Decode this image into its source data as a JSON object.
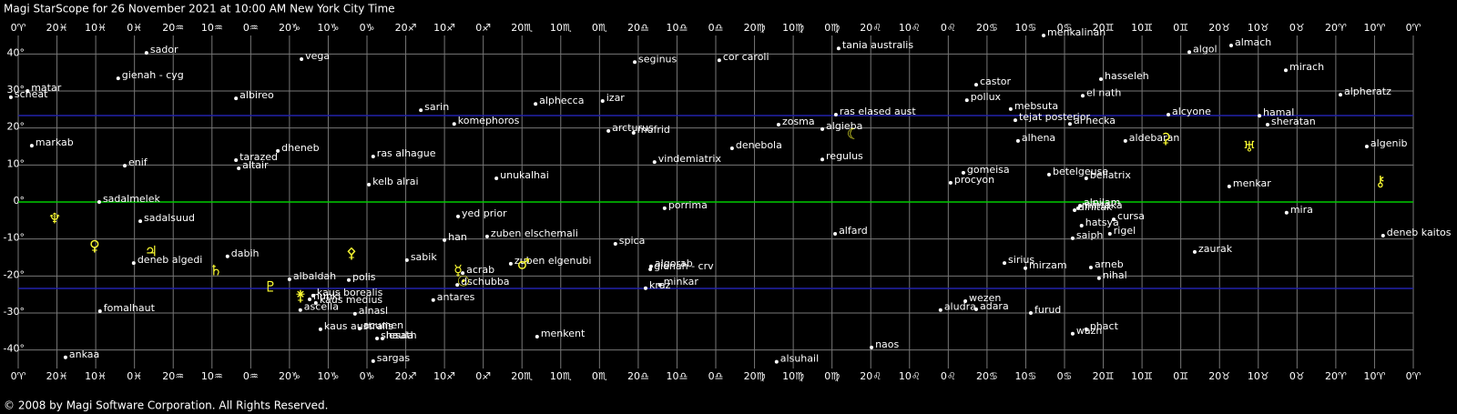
{
  "header": {
    "title": "Magi StarScope for 26 November 2021 at 10:00 AM New York City Time"
  },
  "footer": {
    "text": "© 2008 by Magi Software Corporation. All Rights Reserved."
  },
  "axis": {
    "xlim": [
      360,
      0
    ],
    "ylim": [
      -45,
      45
    ],
    "xticks": [
      {
        "value": 360,
        "label": "0♈"
      },
      {
        "value": 350,
        "label": "20♓"
      },
      {
        "value": 340,
        "label": "10♓"
      },
      {
        "value": 330,
        "label": "0♓"
      },
      {
        "value": 320,
        "label": "20♒"
      },
      {
        "value": 310,
        "label": "10♒"
      },
      {
        "value": 300,
        "label": "0♒"
      },
      {
        "value": 290,
        "label": "20♑"
      },
      {
        "value": 280,
        "label": "10♑"
      },
      {
        "value": 270,
        "label": "0♑"
      },
      {
        "value": 260,
        "label": "20♐"
      },
      {
        "value": 250,
        "label": "10♐"
      },
      {
        "value": 240,
        "label": "0♐"
      },
      {
        "value": 230,
        "label": "20♏"
      },
      {
        "value": 220,
        "label": "10♏"
      },
      {
        "value": 210,
        "label": "0♏"
      },
      {
        "value": 200,
        "label": "20♎"
      },
      {
        "value": 190,
        "label": "10♎"
      },
      {
        "value": 180,
        "label": "0♎"
      },
      {
        "value": 170,
        "label": "20♍"
      },
      {
        "value": 160,
        "label": "10♍"
      },
      {
        "value": 150,
        "label": "0♍"
      },
      {
        "value": 140,
        "label": "20♌"
      },
      {
        "value": 130,
        "label": "10♌"
      },
      {
        "value": 120,
        "label": "0♌"
      },
      {
        "value": 110,
        "label": "20♋"
      },
      {
        "value": 100,
        "label": "10♋"
      },
      {
        "value": 90,
        "label": "0♋"
      },
      {
        "value": 80,
        "label": "20♊"
      },
      {
        "value": 70,
        "label": "10♊"
      },
      {
        "value": 60,
        "label": "0♊"
      },
      {
        "value": 50,
        "label": "20♉"
      },
      {
        "value": 40,
        "label": "10♉"
      },
      {
        "value": 30,
        "label": "0♉"
      },
      {
        "value": 20,
        "label": "20♈"
      },
      {
        "value": 10,
        "label": "10♈"
      },
      {
        "value": 0,
        "label": "0♈"
      }
    ],
    "yticks": [
      {
        "value": 40,
        "label": "40°"
      },
      {
        "value": 30,
        "label": "30°"
      },
      {
        "value": 20,
        "label": "20°"
      },
      {
        "value": 10,
        "label": "10°"
      },
      {
        "value": 0,
        "label": "0°"
      },
      {
        "value": -10,
        "label": "-10°"
      },
      {
        "value": -20,
        "label": "-20°"
      },
      {
        "value": -30,
        "label": "-30°"
      },
      {
        "value": -40,
        "label": "-40°"
      }
    ]
  },
  "stars": [
    {
      "name": "sador",
      "lon": 326.9,
      "dec": 40.3
    },
    {
      "name": "vega",
      "lon": 286.9,
      "dec": 38.6
    },
    {
      "name": "gienah - cyg",
      "lon": 334.2,
      "dec": 33.4
    },
    {
      "name": "matar",
      "lon": 357.6,
      "dec": 30.0
    },
    {
      "name": "scheat",
      "lon": 361.9,
      "dec": 28.3
    },
    {
      "name": "albireo",
      "lon": 303.8,
      "dec": 28.0
    },
    {
      "name": "sarin",
      "lon": 256.1,
      "dec": 24.8
    },
    {
      "name": "alphecca",
      "lon": 226.5,
      "dec": 26.5
    },
    {
      "name": "izar",
      "lon": 209.2,
      "dec": 27.3
    },
    {
      "name": "seginus",
      "lon": 200.9,
      "dec": 37.8
    },
    {
      "name": "cor caroli",
      "lon": 179.1,
      "dec": 38.3
    },
    {
      "name": "tania australis",
      "lon": 148.3,
      "dec": 41.5
    },
    {
      "name": "menkalinan",
      "lon": 95.4,
      "dec": 45.0
    },
    {
      "name": "castor",
      "lon": 112.8,
      "dec": 31.7
    },
    {
      "name": "pollux",
      "lon": 115.2,
      "dec": 27.5
    },
    {
      "name": "mebsuta",
      "lon": 103.9,
      "dec": 25.1
    },
    {
      "name": "tejat posterior",
      "lon": 102.7,
      "dec": 22.1
    },
    {
      "name": "el nath",
      "lon": 85.3,
      "dec": 28.7
    },
    {
      "name": "hasseleh",
      "lon": 80.6,
      "dec": 33.2
    },
    {
      "name": "al hecka",
      "lon": 88.6,
      "dec": 21.1
    },
    {
      "name": "algol",
      "lon": 57.8,
      "dec": 40.5
    },
    {
      "name": "almach",
      "lon": 47.0,
      "dec": 42.3
    },
    {
      "name": "mirach",
      "lon": 32.9,
      "dec": 35.6
    },
    {
      "name": "alpheratz",
      "lon": 18.8,
      "dec": 29.0
    },
    {
      "name": "alcyone",
      "lon": 63.2,
      "dec": 23.6
    },
    {
      "name": "hamal",
      "lon": 39.7,
      "dec": 23.3
    },
    {
      "name": "sheratan",
      "lon": 37.6,
      "dec": 20.9
    },
    {
      "name": "aldebaran",
      "lon": 74.3,
      "dec": 16.5
    },
    {
      "name": "alhena",
      "lon": 102.0,
      "dec": 16.5
    },
    {
      "name": "algenib",
      "lon": 12.0,
      "dec": 15.0
    },
    {
      "name": "komephoros",
      "lon": 247.5,
      "dec": 21.1
    },
    {
      "name": "arcturus",
      "lon": 207.7,
      "dec": 19.2
    },
    {
      "name": "mufrid",
      "lon": 201.2,
      "dec": 18.7
    },
    {
      "name": "zosma",
      "lon": 163.8,
      "dec": 20.9
    },
    {
      "name": "ras elased aust",
      "lon": 149.0,
      "dec": 23.6
    },
    {
      "name": "algieba",
      "lon": 152.5,
      "dec": 19.7
    },
    {
      "name": "denebola",
      "lon": 175.8,
      "dec": 14.5
    },
    {
      "name": "regulus",
      "lon": 152.5,
      "dec": 11.5
    },
    {
      "name": "vindemiatrix",
      "lon": 195.8,
      "dec": 10.8
    },
    {
      "name": "markab",
      "lon": 356.5,
      "dec": 15.2
    },
    {
      "name": "enif",
      "lon": 332.5,
      "dec": 9.8
    },
    {
      "name": "dheneb",
      "lon": 293.0,
      "dec": 13.8
    },
    {
      "name": "tarazed",
      "lon": 303.8,
      "dec": 11.3
    },
    {
      "name": "altair",
      "lon": 303.1,
      "dec": 9.1
    },
    {
      "name": "ras alhague",
      "lon": 268.4,
      "dec": 12.3
    },
    {
      "name": "kelb alrai",
      "lon": 269.5,
      "dec": 4.7
    },
    {
      "name": "unukalhai",
      "lon": 236.6,
      "dec": 6.4
    },
    {
      "name": "gomeisa",
      "lon": 116.1,
      "dec": 7.9
    },
    {
      "name": "procyon",
      "lon": 119.4,
      "dec": 5.2
    },
    {
      "name": "betelgeuse",
      "lon": 94.0,
      "dec": 7.4
    },
    {
      "name": "bellatrix",
      "lon": 84.4,
      "dec": 6.4
    },
    {
      "name": "menkar",
      "lon": 47.5,
      "dec": 4.2
    },
    {
      "name": "mintaka",
      "lon": 86.5,
      "dec": -1.7
    },
    {
      "name": "alnitak",
      "lon": 87.4,
      "dec": -2.2
    },
    {
      "name": "alnilam",
      "lon": 86.0,
      "dec": -1.0
    },
    {
      "name": "porrima",
      "lon": 193.2,
      "dec": -1.7
    },
    {
      "name": "sadalmelek",
      "lon": 339.1,
      "dec": 0.0
    },
    {
      "name": "sadalsuud",
      "lon": 328.5,
      "dec": -5.2
    },
    {
      "name": "yed prior",
      "lon": 246.5,
      "dec": -3.9
    },
    {
      "name": "cursa",
      "lon": 77.3,
      "dec": -4.7
    },
    {
      "name": "hatsya",
      "lon": 85.6,
      "dec": -6.4
    },
    {
      "name": "mira",
      "lon": 32.7,
      "dec": -2.9
    },
    {
      "name": "alfard",
      "lon": 149.2,
      "dec": -8.6
    },
    {
      "name": "zuben elschemali",
      "lon": 239.0,
      "dec": -9.3
    },
    {
      "name": "han",
      "lon": 250.0,
      "dec": -10.3
    },
    {
      "name": "saiph",
      "lon": 87.9,
      "dec": -9.8
    },
    {
      "name": "rigel",
      "lon": 78.3,
      "dec": -8.6
    },
    {
      "name": "deneb kaitos",
      "lon": 7.8,
      "dec": -9.1
    },
    {
      "name": "spica",
      "lon": 205.9,
      "dec": -11.3
    },
    {
      "name": "zaurak",
      "lon": 56.4,
      "dec": -13.5
    },
    {
      "name": "dabih",
      "lon": 306.0,
      "dec": -14.7
    },
    {
      "name": "deneb algedi",
      "lon": 330.2,
      "dec": -16.5
    },
    {
      "name": "sabik",
      "lon": 259.7,
      "dec": -15.7
    },
    {
      "name": "algorab",
      "lon": 196.7,
      "dec": -17.4
    },
    {
      "name": "gienah - crv",
      "lon": 196.9,
      "dec": -18.2
    },
    {
      "name": "zuben elgenubi",
      "lon": 232.9,
      "dec": -16.7
    },
    {
      "name": "sirius",
      "lon": 105.5,
      "dec": -16.5
    },
    {
      "name": "mirzam",
      "lon": 100.1,
      "dec": -17.9
    },
    {
      "name": "arneb",
      "lon": 83.2,
      "dec": -17.7
    },
    {
      "name": "nihal",
      "lon": 81.1,
      "dec": -20.6
    },
    {
      "name": "acrab",
      "lon": 245.3,
      "dec": -19.2
    },
    {
      "name": "albaldah",
      "lon": 290.0,
      "dec": -20.9
    },
    {
      "name": "polis",
      "lon": 274.7,
      "dec": -21.1
    },
    {
      "name": "dschubba",
      "lon": 246.7,
      "dec": -22.4
    },
    {
      "name": "kraz",
      "lon": 198.1,
      "dec": -23.3
    },
    {
      "name": "minkar",
      "lon": 194.4,
      "dec": -22.4
    },
    {
      "name": "kaus borealis",
      "lon": 283.9,
      "dec": -25.3
    },
    {
      "name": "nunki",
      "lon": 284.8,
      "dec": -26.3
    },
    {
      "name": "ascella",
      "lon": 287.2,
      "dec": -29.2
    },
    {
      "name": "kaus medius",
      "lon": 283.2,
      "dec": -27.3
    },
    {
      "name": "antares",
      "lon": 252.9,
      "dec": -26.5
    },
    {
      "name": "alnasl",
      "lon": 273.1,
      "dec": -30.2
    },
    {
      "name": "fomalhaut",
      "lon": 338.9,
      "dec": -29.5
    },
    {
      "name": "aludra",
      "lon": 122.0,
      "dec": -29.2
    },
    {
      "name": "wezen",
      "lon": 115.6,
      "dec": -26.8
    },
    {
      "name": "adara",
      "lon": 112.8,
      "dec": -29.0
    },
    {
      "name": "furud",
      "lon": 98.7,
      "dec": -30.0
    },
    {
      "name": "acumen",
      "lon": 271.9,
      "dec": -34.2
    },
    {
      "name": "kaus australis",
      "lon": 282.0,
      "dec": -34.4
    },
    {
      "name": "shaula",
      "lon": 267.4,
      "dec": -36.9
    },
    {
      "name": "lesath",
      "lon": 266.0,
      "dec": -36.9
    },
    {
      "name": "wazn",
      "lon": 87.9,
      "dec": -35.6
    },
    {
      "name": "phact",
      "lon": 84.4,
      "dec": -34.4
    },
    {
      "name": "menkent",
      "lon": 226.1,
      "dec": -36.4
    },
    {
      "name": "naos",
      "lon": 139.8,
      "dec": -39.3
    },
    {
      "name": "sargas",
      "lon": 268.4,
      "dec": -43.0
    },
    {
      "name": "ankaa",
      "lon": 347.8,
      "dec": -42.0
    },
    {
      "name": "alsuhail",
      "lon": 164.3,
      "dec": -43.2
    }
  ],
  "bodies": [
    {
      "symbol": "♆",
      "lon": 350.6,
      "dec": -4.7
    },
    {
      "symbol": "♀",
      "lon": 340.3,
      "dec": -12.0
    },
    {
      "symbol": "♃",
      "lon": 325.7,
      "dec": -13.5
    },
    {
      "symbol": "♄",
      "lon": 309.0,
      "dec": -18.7
    },
    {
      "symbol": "♇",
      "lon": 294.9,
      "dec": -23.1
    },
    {
      "symbol": "⚵",
      "lon": 287.2,
      "dec": -25.6
    },
    {
      "symbol": "⚴",
      "lon": 274.0,
      "dec": -14.0
    },
    {
      "symbol": "☿",
      "lon": 246.5,
      "dec": -18.7
    },
    {
      "symbol": "☉",
      "lon": 245.1,
      "dec": -21.6
    },
    {
      "symbol": "♂",
      "lon": 229.6,
      "dec": -17.0
    },
    {
      "symbol": "☾",
      "lon": 144.5,
      "dec": 18.2
    },
    {
      "symbol": "⚳",
      "lon": 63.9,
      "dec": 17.0
    },
    {
      "symbol": "♅",
      "lon": 42.3,
      "dec": 14.7
    },
    {
      "symbol": "⚷",
      "lon": 8.5,
      "dec": 5.4
    }
  ]
}
